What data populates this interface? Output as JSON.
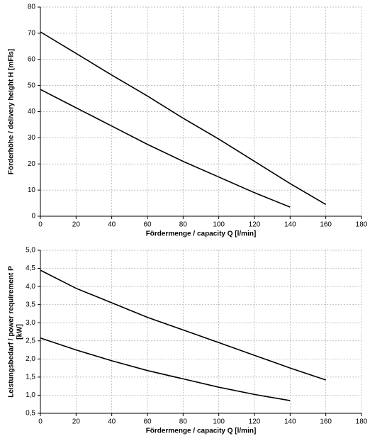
{
  "chart_data": [
    {
      "type": "line",
      "xlabel": "Fördermenge / capacity  Q [l/min]",
      "ylabel": [
        "Förderhöhe / delivery height  H [mFls]"
      ],
      "xlim": [
        0,
        180
      ],
      "ylim": [
        0,
        80
      ],
      "xticks": [
        0,
        20,
        40,
        60,
        80,
        100,
        120,
        140,
        160,
        180
      ],
      "yticks": [
        0,
        10,
        20,
        30,
        40,
        50,
        60,
        70,
        80
      ],
      "grid": true,
      "series": [
        {
          "color": "#000000",
          "x": [
            0,
            20,
            40,
            60,
            80,
            100,
            120,
            140,
            160
          ],
          "values": [
            70.5,
            62.3,
            54,
            46,
            37.5,
            29.5,
            21,
            12.5,
            4.5
          ]
        },
        {
          "color": "#000000",
          "x": [
            0,
            20,
            40,
            60,
            80,
            100,
            120,
            140
          ],
          "values": [
            48.5,
            41.5,
            34.5,
            27.5,
            21,
            15,
            9,
            3.5
          ]
        }
      ]
    },
    {
      "type": "line",
      "xlabel": "Fördermenge / capacity  Q [l/min]",
      "ylabel": [
        "Leistungsbedarf / power requirement  P",
        "[kW]"
      ],
      "xlim": [
        0,
        180
      ],
      "ylim": [
        0.5,
        5.0
      ],
      "xticks": [
        0,
        20,
        40,
        60,
        80,
        100,
        120,
        140,
        160,
        180
      ],
      "yticks": [
        {
          "value": 0.5,
          "label": "0,5"
        },
        {
          "value": 1.0,
          "label": "1,0"
        },
        {
          "value": 1.5,
          "label": "1,5"
        },
        {
          "value": 2.0,
          "label": "2,0"
        },
        {
          "value": 2.5,
          "label": "2,5"
        },
        {
          "value": 3.0,
          "label": "3,0"
        },
        {
          "value": 3.5,
          "label": "3,5"
        },
        {
          "value": 4.0,
          "label": "4,0"
        },
        {
          "value": 4.5,
          "label": "4,5"
        },
        {
          "value": 5.0,
          "label": "5,0"
        }
      ],
      "grid": true,
      "series": [
        {
          "color": "#000000",
          "x": [
            0,
            20,
            40,
            60,
            80,
            100,
            120,
            140,
            160
          ],
          "values": [
            4.45,
            3.95,
            3.55,
            3.15,
            2.8,
            2.45,
            2.1,
            1.75,
            1.42
          ]
        },
        {
          "color": "#000000",
          "x": [
            0,
            20,
            40,
            60,
            80,
            100,
            120,
            140
          ],
          "values": [
            2.58,
            2.25,
            1.95,
            1.68,
            1.45,
            1.22,
            1.02,
            0.85
          ]
        }
      ]
    }
  ]
}
